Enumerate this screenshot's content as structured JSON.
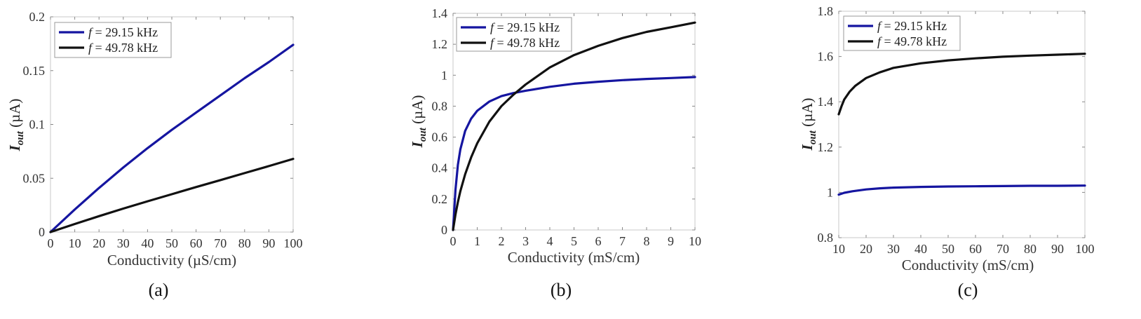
{
  "chart_data": [
    {
      "type": "line",
      "caption": "(a)",
      "xlabel": "Conductivity (µS/cm)",
      "ylabel": {
        "symbol": "I",
        "subscript": "out",
        "unit": " (µA)"
      },
      "xlim": [
        0,
        100
      ],
      "ylim": [
        0,
        0.2
      ],
      "xticks": [
        0,
        10,
        20,
        30,
        40,
        50,
        60,
        70,
        80,
        90,
        100
      ],
      "yticks": [
        0,
        0.05,
        0.1,
        0.15,
        0.2
      ],
      "ytick_labels": [
        "0",
        "0.05",
        "0.1",
        "0.15",
        "0.2"
      ],
      "legend_position": "top-left",
      "series": [
        {
          "name": "f = 29.15 kHz",
          "legend_var": "f",
          "legend_rest": " = 29.15 kHz",
          "color": "#1515a0",
          "x": [
            0,
            10,
            20,
            30,
            40,
            50,
            60,
            70,
            80,
            90,
            100
          ],
          "y": [
            0,
            0.021,
            0.041,
            0.06,
            0.078,
            0.095,
            0.111,
            0.127,
            0.143,
            0.158,
            0.174
          ]
        },
        {
          "name": "f = 49.78 kHz",
          "legend_var": "f",
          "legend_rest": " = 49.78 kHz",
          "color": "#111111",
          "x": [
            0,
            10,
            20,
            30,
            40,
            50,
            60,
            70,
            80,
            90,
            100
          ],
          "y": [
            0,
            0.0075,
            0.0148,
            0.0218,
            0.0286,
            0.0352,
            0.0418,
            0.0483,
            0.0548,
            0.0613,
            0.068
          ]
        }
      ]
    },
    {
      "type": "line",
      "caption": "(b)",
      "xlabel": "Conductivity (mS/cm)",
      "ylabel": {
        "symbol": "I",
        "subscript": "out",
        "unit": " (µA)"
      },
      "xlim": [
        0,
        10
      ],
      "ylim": [
        0,
        1.4
      ],
      "xticks": [
        0,
        1,
        2,
        3,
        4,
        5,
        6,
        7,
        8,
        9,
        10
      ],
      "yticks": [
        0,
        0.2,
        0.4,
        0.6,
        0.8,
        1,
        1.2,
        1.4
      ],
      "ytick_labels": [
        "0",
        "0.2",
        "0.4",
        "0.6",
        "0.8",
        "1",
        "1.2",
        "1.4"
      ],
      "legend_position": "top-left",
      "series": [
        {
          "name": "f = 29.15 kHz",
          "legend_var": "f",
          "legend_rest": " = 29.15 kHz",
          "color": "#1515a0",
          "x": [
            0,
            0.1,
            0.2,
            0.3,
            0.5,
            0.75,
            1,
            1.5,
            2,
            2.5,
            3,
            4,
            5,
            6,
            7,
            8,
            9,
            10
          ],
          "y": [
            0,
            0.26,
            0.42,
            0.52,
            0.64,
            0.72,
            0.77,
            0.83,
            0.865,
            0.885,
            0.9,
            0.925,
            0.945,
            0.958,
            0.968,
            0.976,
            0.982,
            0.988
          ]
        },
        {
          "name": "f = 49.78 kHz",
          "legend_var": "f",
          "legend_rest": " = 49.78 kHz",
          "color": "#111111",
          "x": [
            0,
            0.1,
            0.2,
            0.3,
            0.5,
            0.75,
            1,
            1.5,
            2,
            2.5,
            3,
            4,
            5,
            6,
            7,
            8,
            9,
            10
          ],
          "y": [
            0,
            0.1,
            0.18,
            0.25,
            0.36,
            0.47,
            0.56,
            0.7,
            0.8,
            0.875,
            0.94,
            1.05,
            1.13,
            1.19,
            1.24,
            1.28,
            1.31,
            1.34
          ]
        }
      ]
    },
    {
      "type": "line",
      "caption": "(c)",
      "xlabel": "Conductivity (mS/cm)",
      "ylabel": {
        "symbol": "I",
        "subscript": "out",
        "unit": " (µA)"
      },
      "xlim": [
        10,
        100
      ],
      "ylim": [
        0.8,
        1.8
      ],
      "xticks": [
        10,
        20,
        30,
        40,
        50,
        60,
        70,
        80,
        90,
        100
      ],
      "yticks": [
        0.8,
        1,
        1.2,
        1.4,
        1.6,
        1.8
      ],
      "ytick_labels": [
        "0.8",
        "1",
        "1.2",
        "1.4",
        "1.6",
        "1.8"
      ],
      "legend_position": "top-left",
      "series": [
        {
          "name": "f = 29.15 kHz",
          "legend_var": "f",
          "legend_rest": " = 29.15 kHz",
          "color": "#1515a0",
          "x": [
            10,
            12,
            15,
            20,
            25,
            30,
            40,
            50,
            60,
            70,
            80,
            90,
            100
          ],
          "y": [
            0.99,
            0.998,
            1.005,
            1.013,
            1.018,
            1.021,
            1.024,
            1.026,
            1.027,
            1.028,
            1.029,
            1.029,
            1.03
          ]
        },
        {
          "name": "f = 49.78 kHz",
          "legend_var": "f",
          "legend_rest": " = 49.78 kHz",
          "color": "#111111",
          "x": [
            10,
            11,
            12,
            14,
            16,
            20,
            25,
            30,
            40,
            50,
            60,
            70,
            80,
            90,
            100
          ],
          "y": [
            1.345,
            1.38,
            1.41,
            1.445,
            1.47,
            1.505,
            1.53,
            1.55,
            1.57,
            1.583,
            1.592,
            1.599,
            1.604,
            1.608,
            1.612
          ]
        }
      ]
    }
  ]
}
